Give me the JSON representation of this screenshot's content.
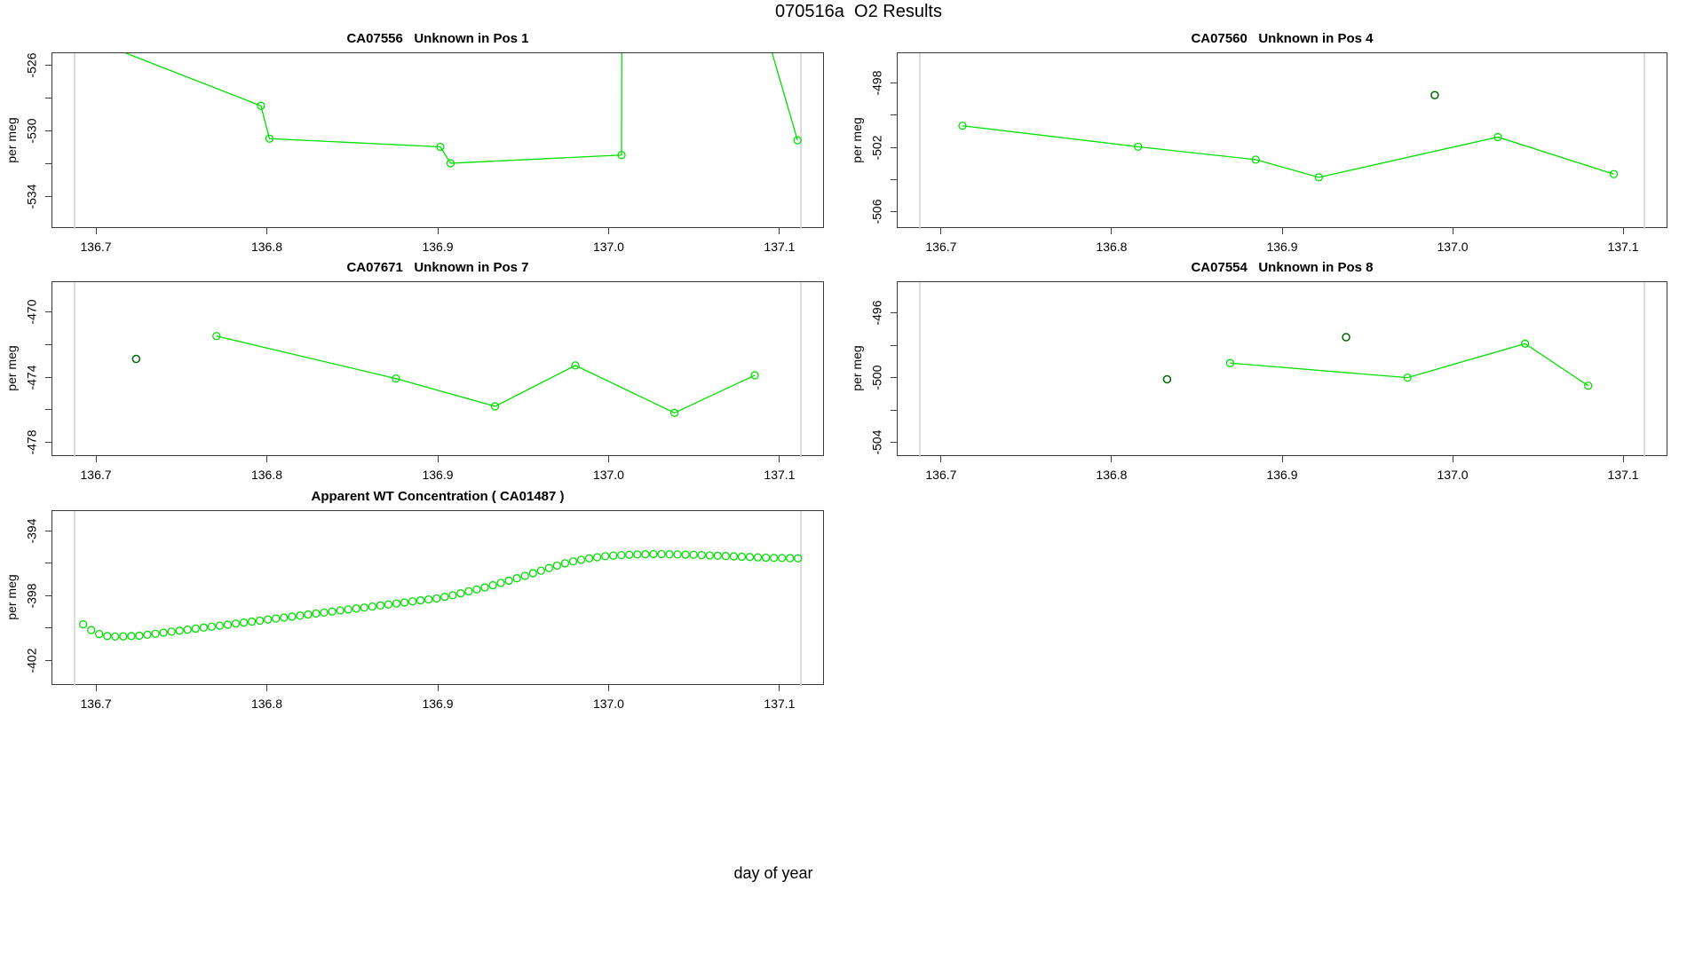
{
  "page": {
    "title": "070516a  O2 Results",
    "xlabel": "day of year"
  },
  "colors": {
    "series": "#00e000",
    "flagged": "#006400",
    "boundary": "#d3d3d3",
    "axis": "#3a3a3a",
    "background": "#ffffff"
  },
  "chart_data": [
    {
      "type": "line",
      "id": "pos1",
      "title": "CA07556   Unknown in Pos 1",
      "ylabel": "per meg",
      "col": 0,
      "row": 0,
      "xlim": [
        136.674,
        137.126
      ],
      "ylim": [
        -535.9,
        -525.2
      ],
      "x_ticks": {
        "values": [
          136.7,
          136.8,
          136.9,
          137.0,
          137.1
        ],
        "labels": [
          "136.7",
          "136.8",
          "136.9",
          "137.0",
          "137.1"
        ]
      },
      "y_ticks": {
        "major_values": [
          -526,
          -530,
          -534
        ],
        "major_labels": [
          "-526",
          "-530",
          "-534"
        ],
        "minor_values": [
          -528,
          -532
        ]
      },
      "boundary_days": [
        136.687,
        137.112
      ],
      "draw_line": true,
      "series": {
        "x": [
          136.695,
          136.796,
          136.801,
          136.901,
          136.907,
          137.007,
          137.008,
          137.11
        ],
        "y": [
          -524.3,
          -528.4,
          -530.4,
          -530.9,
          -531.9,
          -531.4,
          -494.0,
          -530.5
        ]
      },
      "flagged": {
        "x": [],
        "y": []
      }
    },
    {
      "type": "line",
      "id": "pos4",
      "title": "CA07560   Unknown in Pos 4",
      "ylabel": "per meg",
      "col": 1,
      "row": 0,
      "xlim": [
        136.674,
        137.126
      ],
      "ylim": [
        -507.0,
        -496.1
      ],
      "x_ticks": {
        "values": [
          136.7,
          136.8,
          136.9,
          137.0,
          137.1
        ],
        "labels": [
          "136.7",
          "136.8",
          "136.9",
          "137.0",
          "137.1"
        ]
      },
      "y_ticks": {
        "major_values": [
          -498,
          -502,
          -506
        ],
        "major_labels": [
          "-498",
          "-502",
          "-506"
        ],
        "minor_values": [
          -500,
          -504
        ]
      },
      "boundary_days": [
        136.687,
        137.112
      ],
      "draw_line": true,
      "series": {
        "x": [
          136.712,
          136.815,
          136.884,
          136.921,
          137.026,
          137.094
        ],
        "y": [
          -500.6,
          -501.9,
          -502.7,
          -503.8,
          -501.3,
          -503.6
        ]
      },
      "flagged": {
        "x": [
          136.989
        ],
        "y": [
          -498.7
        ]
      }
    },
    {
      "type": "line",
      "id": "pos7",
      "title": "CA07671   Unknown in Pos 7",
      "ylabel": "per meg",
      "col": 0,
      "row": 1,
      "xlim": [
        136.674,
        137.126
      ],
      "ylim": [
        -478.8,
        -468.1
      ],
      "x_ticks": {
        "values": [
          136.7,
          136.8,
          136.9,
          137.0,
          137.1
        ],
        "labels": [
          "136.7",
          "136.8",
          "136.9",
          "137.0",
          "137.1"
        ]
      },
      "y_ticks": {
        "major_values": [
          -470,
          -474,
          -478
        ],
        "major_labels": [
          "-470",
          "-474",
          "-478"
        ],
        "minor_values": [
          -472,
          -476
        ]
      },
      "boundary_days": [
        136.687,
        137.112
      ],
      "draw_line": true,
      "series": {
        "x": [
          136.77,
          136.875,
          136.933,
          136.98,
          137.038,
          137.085
        ],
        "y": [
          -471.4,
          -474.0,
          -475.7,
          -473.2,
          -476.1,
          -473.8
        ]
      },
      "flagged": {
        "x": [
          136.723
        ],
        "y": [
          -472.8
        ]
      }
    },
    {
      "type": "line",
      "id": "pos8",
      "title": "CA07554   Unknown in Pos 8",
      "ylabel": "per meg",
      "col": 1,
      "row": 1,
      "xlim": [
        136.674,
        137.126
      ],
      "ylim": [
        -504.8,
        -494.0
      ],
      "x_ticks": {
        "values": [
          136.7,
          136.8,
          136.9,
          137.0,
          137.1
        ],
        "labels": [
          "136.7",
          "136.8",
          "136.9",
          "137.0",
          "137.1"
        ]
      },
      "y_ticks": {
        "major_values": [
          -496,
          -500,
          -504
        ],
        "major_labels": [
          "-496",
          "-500",
          "-504"
        ],
        "minor_values": [
          -498,
          -502
        ]
      },
      "boundary_days": [
        136.687,
        137.112
      ],
      "draw_line": true,
      "series": {
        "x": [
          136.869,
          136.973,
          137.042,
          137.079
        ],
        "y": [
          -499.0,
          -499.9,
          -497.8,
          -500.4
        ]
      },
      "flagged": {
        "x": [
          136.832,
          136.937
        ],
        "y": [
          -500.0,
          -497.4
        ]
      }
    },
    {
      "type": "scatter",
      "id": "apparent-wt",
      "title": "Apparent WT Concentration ( CA01487 )",
      "ylabel": "per meg",
      "col": 0,
      "row": 2,
      "xlim": [
        136.674,
        137.126
      ],
      "ylim": [
        -403.5,
        -392.7
      ],
      "x_ticks": {
        "values": [
          136.7,
          136.8,
          136.9,
          137.0,
          137.1
        ],
        "labels": [
          "136.7",
          "136.8",
          "136.9",
          "137.0",
          "137.1"
        ]
      },
      "y_ticks": {
        "major_values": [
          -394,
          -398,
          -402
        ],
        "major_labels": [
          "-394",
          "-398",
          "-402"
        ],
        "minor_values": [
          -396,
          -400
        ]
      },
      "boundary_days": [
        136.687,
        137.112
      ],
      "draw_line": false,
      "series": {
        "x": [
          136.692,
          136.6967,
          136.7014,
          136.7061,
          136.7108,
          136.7155,
          136.7202,
          136.7249,
          136.7296,
          136.7343,
          136.739,
          136.7437,
          136.7484,
          136.7531,
          136.7578,
          136.7625,
          136.7672,
          136.7719,
          136.7766,
          136.7813,
          136.786,
          136.7907,
          136.7954,
          136.8001,
          136.8048,
          136.8095,
          136.8142,
          136.8189,
          136.8236,
          136.8283,
          136.833,
          136.8377,
          136.8424,
          136.8471,
          136.8518,
          136.8565,
          136.8612,
          136.8659,
          136.8706,
          136.8753,
          136.88,
          136.8847,
          136.8894,
          136.8941,
          136.8988,
          136.9035,
          136.9082,
          136.9129,
          136.9176,
          136.9223,
          136.927,
          136.9317,
          136.9364,
          136.9411,
          136.9458,
          136.9505,
          136.9552,
          136.9599,
          136.9646,
          136.9693,
          136.974,
          136.9787,
          136.9834,
          136.9881,
          136.9928,
          136.9975,
          137.0022,
          137.0069,
          137.0116,
          137.0163,
          137.021,
          137.0257,
          137.0304,
          137.0351,
          137.0398,
          137.0445,
          137.0492,
          137.0539,
          137.0586,
          137.0633,
          137.068,
          137.0727,
          137.0774,
          137.0821,
          137.0868,
          137.0915,
          137.0962,
          137.1009,
          137.1056,
          137.1103
        ],
        "y": [
          -399.7,
          -400.05,
          -400.3,
          -400.42,
          -400.45,
          -400.44,
          -400.42,
          -400.4,
          -400.34,
          -400.28,
          -400.21,
          -400.15,
          -400.09,
          -400.03,
          -399.96,
          -399.9,
          -399.84,
          -399.78,
          -399.72,
          -399.65,
          -399.59,
          -399.53,
          -399.47,
          -399.4,
          -399.34,
          -399.28,
          -399.22,
          -399.16,
          -399.09,
          -399.03,
          -398.97,
          -398.91,
          -398.84,
          -398.78,
          -398.72,
          -398.66,
          -398.6,
          -398.53,
          -398.47,
          -398.41,
          -398.35,
          -398.28,
          -398.22,
          -398.16,
          -398.1,
          -398.0,
          -397.9,
          -397.78,
          -397.66,
          -397.54,
          -397.42,
          -397.28,
          -397.14,
          -397.0,
          -396.85,
          -396.7,
          -396.54,
          -396.38,
          -396.22,
          -396.07,
          -395.93,
          -395.81,
          -395.71,
          -395.62,
          -395.55,
          -395.49,
          -395.45,
          -395.42,
          -395.4,
          -395.38,
          -395.37,
          -395.36,
          -395.36,
          -395.37,
          -395.38,
          -395.39,
          -395.4,
          -395.42,
          -395.44,
          -395.46,
          -395.48,
          -395.5,
          -395.52,
          -395.54,
          -395.56,
          -395.58,
          -395.59,
          -395.6,
          -395.61,
          -395.62
        ]
      },
      "flagged": {
        "x": [],
        "y": []
      }
    }
  ]
}
